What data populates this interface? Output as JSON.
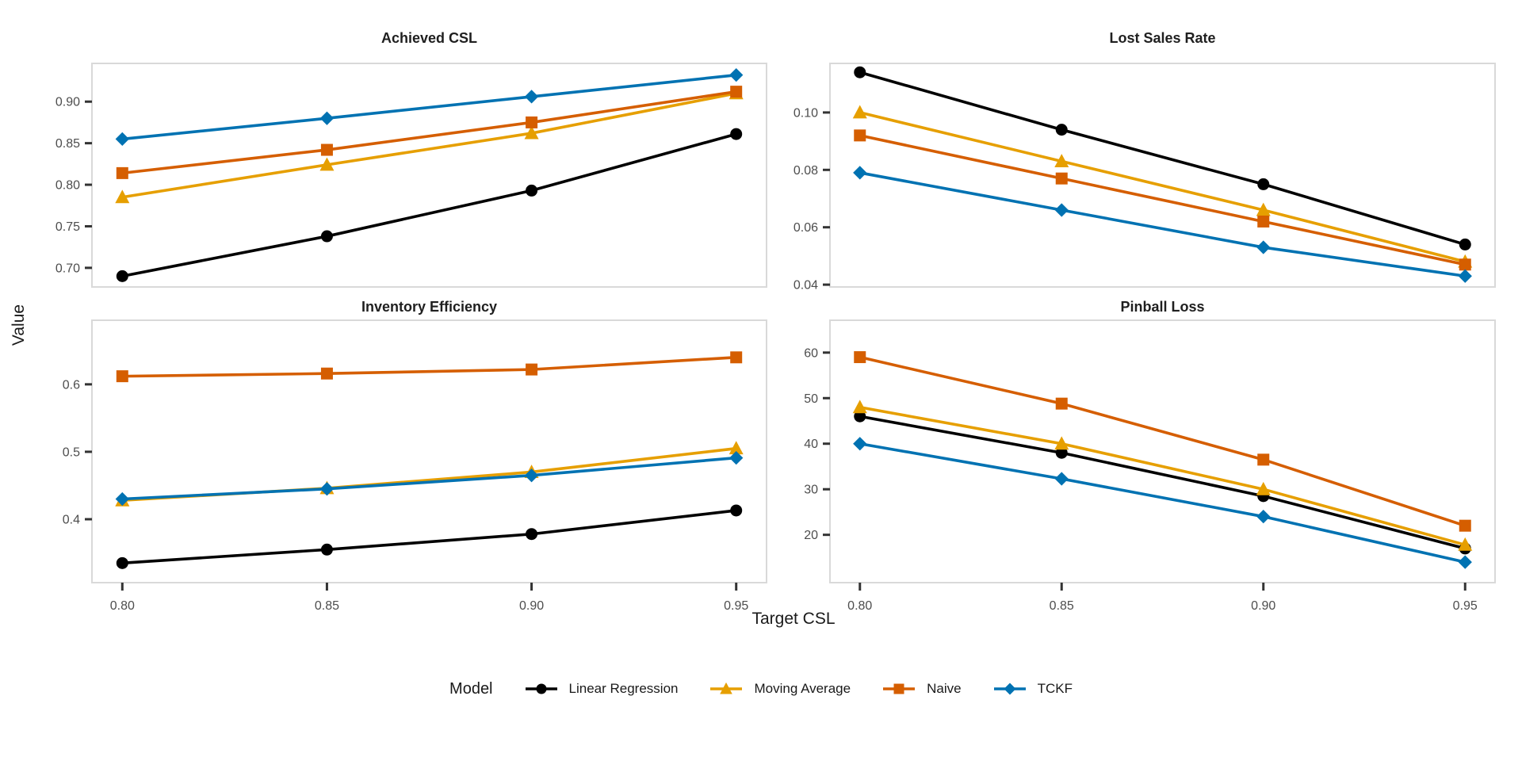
{
  "figure": {
    "x_axis_title": "Target CSL",
    "y_axis_title": "Value",
    "background_color": "#ffffff",
    "panel_border_color": "#d9d9d9",
    "tick_color": "#333333",
    "tick_label_color": "#4d4d4d",
    "title_color": "#1f1f1f"
  },
  "legend": {
    "title": "Model",
    "position": "bottom-center",
    "items": [
      {
        "label": "Linear Regression",
        "color": "#000000",
        "marker": "circle-icon"
      },
      {
        "label": "Moving Average",
        "color": "#E69F00",
        "marker": "triangle-icon"
      },
      {
        "label": "Naive",
        "color": "#D55E00",
        "marker": "square-icon"
      },
      {
        "label": "TCKF",
        "color": "#0072B2",
        "marker": "diamond-icon"
      }
    ]
  },
  "chart_data": [
    {
      "type": "line",
      "title": "Achieved CSL",
      "x": [
        0.8,
        0.85,
        0.9,
        0.95
      ],
      "x_tick_labels": [
        "0.80",
        "0.85",
        "0.90",
        "0.95"
      ],
      "xlabel": "Target CSL",
      "ylabel": "Value",
      "ylim": [
        0.677,
        0.946
      ],
      "yticks": [
        0.7,
        0.75,
        0.8,
        0.85,
        0.9
      ],
      "ytick_labels": [
        "0.70",
        "0.75",
        "0.80",
        "0.85",
        "0.90"
      ],
      "grid": false,
      "series": [
        {
          "name": "Linear Regression",
          "values": [
            0.69,
            0.738,
            0.793,
            0.861
          ]
        },
        {
          "name": "Moving Average",
          "values": [
            0.785,
            0.824,
            0.862,
            0.91
          ]
        },
        {
          "name": "Naive",
          "values": [
            0.814,
            0.842,
            0.875,
            0.912
          ]
        },
        {
          "name": "TCKF",
          "values": [
            0.855,
            0.88,
            0.906,
            0.932
          ]
        }
      ]
    },
    {
      "type": "line",
      "title": "Lost Sales Rate",
      "x": [
        0.8,
        0.85,
        0.9,
        0.95
      ],
      "x_tick_labels": [
        "0.80",
        "0.85",
        "0.90",
        "0.95"
      ],
      "xlabel": "Target CSL",
      "ylabel": "Value",
      "ylim": [
        0.0392,
        0.1171
      ],
      "yticks": [
        0.04,
        0.06,
        0.08,
        0.1
      ],
      "ytick_labels": [
        "0.04",
        "0.06",
        "0.08",
        "0.10"
      ],
      "grid": false,
      "series": [
        {
          "name": "Linear Regression",
          "values": [
            0.114,
            0.094,
            0.075,
            0.054
          ]
        },
        {
          "name": "Moving Average",
          "values": [
            0.1,
            0.083,
            0.066,
            0.048
          ]
        },
        {
          "name": "Naive",
          "values": [
            0.092,
            0.077,
            0.062,
            0.047
          ]
        },
        {
          "name": "TCKF",
          "values": [
            0.079,
            0.066,
            0.053,
            0.043
          ]
        }
      ]
    },
    {
      "type": "line",
      "title": "Inventory Efficiency",
      "x": [
        0.8,
        0.85,
        0.9,
        0.95
      ],
      "x_tick_labels": [
        "0.80",
        "0.85",
        "0.90",
        "0.95"
      ],
      "xlabel": "Target CSL",
      "ylabel": "Value",
      "ylim": [
        0.306,
        0.695
      ],
      "yticks": [
        0.4,
        0.5,
        0.6
      ],
      "ytick_labels": [
        "0.4",
        "0.5",
        "0.6"
      ],
      "grid": false,
      "series": [
        {
          "name": "Linear Regression",
          "values": [
            0.335,
            0.355,
            0.378,
            0.413
          ]
        },
        {
          "name": "Moving Average",
          "values": [
            0.428,
            0.446,
            0.47,
            0.505
          ]
        },
        {
          "name": "Naive",
          "values": [
            0.612,
            0.616,
            0.622,
            0.64
          ]
        },
        {
          "name": "TCKF",
          "values": [
            0.43,
            0.445,
            0.465,
            0.491
          ]
        }
      ]
    },
    {
      "type": "line",
      "title": "Pinball Loss",
      "x": [
        0.8,
        0.85,
        0.9,
        0.95
      ],
      "x_tick_labels": [
        "0.80",
        "0.85",
        "0.90",
        "0.95"
      ],
      "xlabel": "Target CSL",
      "ylabel": "Value",
      "ylim": [
        9.5,
        67.1
      ],
      "yticks": [
        20,
        30,
        40,
        50,
        60
      ],
      "ytick_labels": [
        "20",
        "30",
        "40",
        "50",
        "60"
      ],
      "grid": false,
      "series": [
        {
          "name": "Linear Regression",
          "values": [
            46.0,
            38.0,
            28.5,
            17.0
          ]
        },
        {
          "name": "Moving Average",
          "values": [
            48.0,
            40.0,
            30.0,
            17.8
          ]
        },
        {
          "name": "Naive",
          "values": [
            59.0,
            48.8,
            36.5,
            22.0
          ]
        },
        {
          "name": "TCKF",
          "values": [
            40.0,
            32.3,
            24.0,
            14.0
          ]
        }
      ]
    }
  ]
}
